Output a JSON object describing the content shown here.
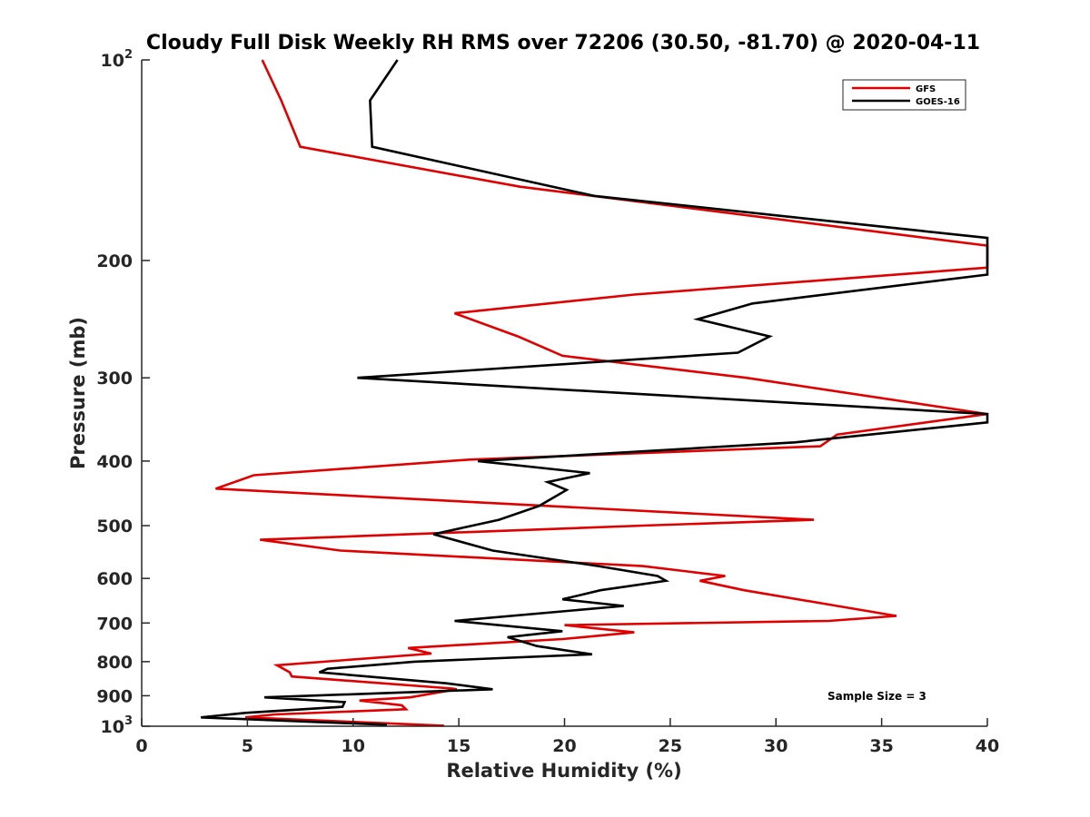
{
  "chart_data": {
    "type": "line",
    "title": "Cloudy Full Disk Weekly RH RMS over 72206 (30.50, -81.70) @ 2020-04-11",
    "xlabel": "Relative Humidity (%)",
    "ylabel": "Pressure (mb)",
    "xlim": [
      0,
      40
    ],
    "ylim": [
      100,
      1000
    ],
    "yscale": "log",
    "y_reversed": true,
    "grid": false,
    "legend_position": "top-right",
    "x_ticks": [
      "0",
      "5",
      "10",
      "15",
      "20",
      "25",
      "30",
      "35",
      "40"
    ],
    "y_ticks": [
      {
        "value": 100,
        "base": "10",
        "exp": "2"
      },
      {
        "value": 200,
        "label": "200"
      },
      {
        "value": 300,
        "label": "300"
      },
      {
        "value": 400,
        "label": "400"
      },
      {
        "value": 500,
        "label": "500"
      },
      {
        "value": 600,
        "label": "600"
      },
      {
        "value": 700,
        "label": "700"
      },
      {
        "value": 800,
        "label": "800"
      },
      {
        "value": 900,
        "label": "900"
      },
      {
        "value": 1000,
        "base": "10",
        "exp": "3"
      }
    ],
    "annotation": "Sample Size = 3",
    "series": [
      {
        "name": "GFS",
        "color": "#e00000",
        "points": [
          [
            5.7,
            100
          ],
          [
            6.6,
            115
          ],
          [
            7.5,
            135
          ],
          [
            17.9,
            155
          ],
          [
            40,
            190
          ],
          [
            40,
            205
          ],
          [
            23.3,
            225
          ],
          [
            14.8,
            240
          ],
          [
            17.8,
            260
          ],
          [
            19.9,
            278
          ],
          [
            28.6,
            300
          ],
          [
            40,
            340
          ],
          [
            32.9,
            365
          ],
          [
            32.1,
            380
          ],
          [
            15.5,
            398
          ],
          [
            5.3,
            420
          ],
          [
            3.5,
            440
          ],
          [
            31.8,
            490
          ],
          [
            23.7,
            500
          ],
          [
            5.6,
            525
          ],
          [
            9.4,
            545
          ],
          [
            23.7,
            575
          ],
          [
            27.6,
            595
          ],
          [
            26.4,
            605
          ],
          [
            28.5,
            625
          ],
          [
            32.9,
            660
          ],
          [
            35.7,
            683
          ],
          [
            32.5,
            695
          ],
          [
            20.0,
            705
          ],
          [
            23.3,
            723
          ],
          [
            19.9,
            740
          ],
          [
            12.6,
            763
          ],
          [
            13.7,
            778
          ],
          [
            6.4,
            810
          ],
          [
            7.0,
            830
          ],
          [
            7.1,
            842
          ],
          [
            14.7,
            878
          ],
          [
            14.9,
            880
          ],
          [
            12.7,
            905
          ],
          [
            10.3,
            915
          ],
          [
            12.3,
            930
          ],
          [
            12.5,
            943
          ],
          [
            6.3,
            960
          ],
          [
            4.9,
            970
          ],
          [
            14.3,
            998
          ]
        ]
      },
      {
        "name": "GOES-16",
        "color": "#000000",
        "points": [
          [
            12.1,
            100
          ],
          [
            10.8,
            115
          ],
          [
            10.9,
            135
          ],
          [
            21.4,
            160
          ],
          [
            40,
            185
          ],
          [
            40,
            210
          ],
          [
            28.9,
            232
          ],
          [
            26.3,
            245
          ],
          [
            29.7,
            260
          ],
          [
            28.2,
            275
          ],
          [
            10.2,
            300
          ],
          [
            40,
            340
          ],
          [
            40,
            350
          ],
          [
            30.9,
            375
          ],
          [
            15.9,
            400
          ],
          [
            21.2,
            417
          ],
          [
            19.2,
            430
          ],
          [
            20.1,
            442
          ],
          [
            18.8,
            467
          ],
          [
            16.9,
            490
          ],
          [
            13.8,
            515
          ],
          [
            16.6,
            545
          ],
          [
            21.6,
            575
          ],
          [
            24.4,
            595
          ],
          [
            24.8,
            605
          ],
          [
            21.7,
            625
          ],
          [
            19.9,
            645
          ],
          [
            22.8,
            660
          ],
          [
            14.8,
            695
          ],
          [
            19.9,
            720
          ],
          [
            17.3,
            735
          ],
          [
            18.7,
            758
          ],
          [
            21.3,
            780
          ],
          [
            12.9,
            800
          ],
          [
            8.8,
            820
          ],
          [
            8.4,
            830
          ],
          [
            14.4,
            862
          ],
          [
            16.6,
            880
          ],
          [
            5.8,
            905
          ],
          [
            9.6,
            920
          ],
          [
            9.5,
            935
          ],
          [
            4.9,
            955
          ],
          [
            2.8,
            970
          ],
          [
            11.6,
            995
          ]
        ]
      }
    ]
  }
}
